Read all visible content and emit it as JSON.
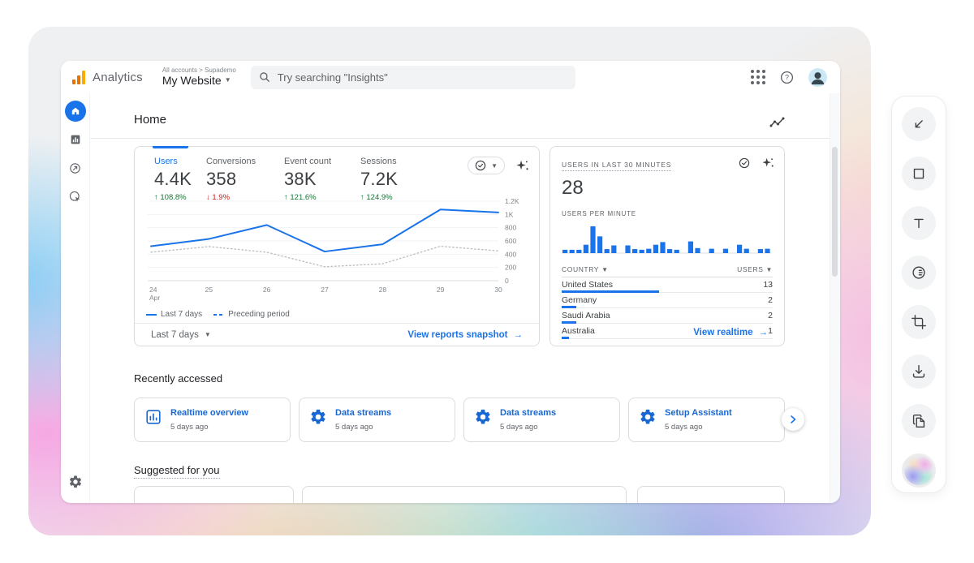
{
  "topbar": {
    "brand": "Analytics",
    "breadcrumb": "All accounts > Supademo",
    "property": "My Website",
    "search_placeholder": "Try searching \"Insights\""
  },
  "sidebar": {
    "items": [
      {
        "name": "home",
        "active": true
      },
      {
        "name": "reports",
        "active": false
      },
      {
        "name": "explore",
        "active": false
      },
      {
        "name": "advertising",
        "active": false
      }
    ]
  },
  "home": {
    "title": "Home"
  },
  "overview": {
    "metrics": [
      {
        "label": "Users",
        "value": "4.4K",
        "delta": "108.8%",
        "direction": "up",
        "active": true
      },
      {
        "label": "Conversions",
        "value": "358",
        "delta": "1.9%",
        "direction": "down",
        "active": false
      },
      {
        "label": "Event count",
        "value": "38K",
        "delta": "121.6%",
        "direction": "up",
        "active": false
      },
      {
        "label": "Sessions",
        "value": "7.2K",
        "delta": "124.9%",
        "direction": "up",
        "active": false
      }
    ],
    "legend": [
      {
        "label": "Last 7 days",
        "style": "solid"
      },
      {
        "label": "Preceding period",
        "style": "dashed"
      }
    ],
    "range_label": "Last 7 days",
    "link_label": "View reports snapshot",
    "link_arrow": "→"
  },
  "chart_data": [
    {
      "type": "line",
      "title": "Users over time",
      "x": [
        [
          "24",
          "Apr"
        ],
        "25",
        "26",
        "27",
        "28",
        "29",
        "30"
      ],
      "series": [
        {
          "name": "Last 7 days",
          "style": "solid",
          "color": "#1a73e8",
          "values": [
            520,
            630,
            840,
            440,
            550,
            1075,
            1030
          ]
        },
        {
          "name": "Preceding period",
          "style": "dotted",
          "color": "#bdc1c6",
          "values": [
            430,
            515,
            430,
            210,
            255,
            520,
            450
          ]
        }
      ],
      "ylim": [
        0,
        1200
      ],
      "yticks": [
        "0",
        "200",
        "400",
        "600",
        "800",
        "1K",
        "1.2K"
      ],
      "grid": true,
      "legend_position": "bottom"
    },
    {
      "type": "bar",
      "title": "Users per minute",
      "values": [
        1,
        1,
        1,
        2.5,
        8,
        5,
        1.2,
        2.3,
        0,
        2.3,
        1.2,
        1,
        1.3,
        2.5,
        3.3,
        1.2,
        1,
        0,
        3.5,
        1.5,
        0,
        1.3,
        0,
        1.3,
        0,
        2.5,
        1.3,
        0,
        1.2,
        1.3
      ],
      "color": "#1a73e8",
      "ylim": [
        0,
        8
      ]
    }
  ],
  "realtime": {
    "title": "USERS IN LAST 30 MINUTES",
    "value": "28",
    "chart_label": "USERS PER MINUTE",
    "table": {
      "headers": [
        "COUNTRY",
        "USERS"
      ],
      "rows": [
        {
          "country": "United States",
          "users": "13"
        },
        {
          "country": "Germany",
          "users": "2"
        },
        {
          "country": "Saudi Arabia",
          "users": "2"
        },
        {
          "country": "Australia",
          "users": "1"
        }
      ],
      "max_users": 13
    },
    "link_label": "View realtime",
    "link_arrow": "→"
  },
  "recent": {
    "title": "Recently accessed",
    "items": [
      {
        "label": "Realtime overview",
        "time": "5 days ago",
        "icon": "chart-card-icon"
      },
      {
        "label": "Data streams",
        "time": "5 days ago",
        "icon": "gear-card-icon"
      },
      {
        "label": "Data streams",
        "time": "5 days ago",
        "icon": "gear-card-icon"
      },
      {
        "label": "Setup Assistant",
        "time": "5 days ago",
        "icon": "gear-card-icon"
      }
    ]
  },
  "suggested": {
    "title": "Suggested for you"
  },
  "toolbar": {
    "tools": [
      {
        "name": "arrow"
      },
      {
        "name": "rectangle"
      },
      {
        "name": "text"
      },
      {
        "name": "blur"
      },
      {
        "name": "crop"
      },
      {
        "name": "download"
      },
      {
        "name": "duplicate"
      },
      {
        "name": "background"
      }
    ]
  },
  "colors": {
    "accent": "#1a73e8",
    "positive": "#137333",
    "negative": "#c5221f",
    "link": "#1a73e8",
    "muted": "#5f6368",
    "logo_orange": "#e37400",
    "logo_yellow": "#f9ab00"
  }
}
